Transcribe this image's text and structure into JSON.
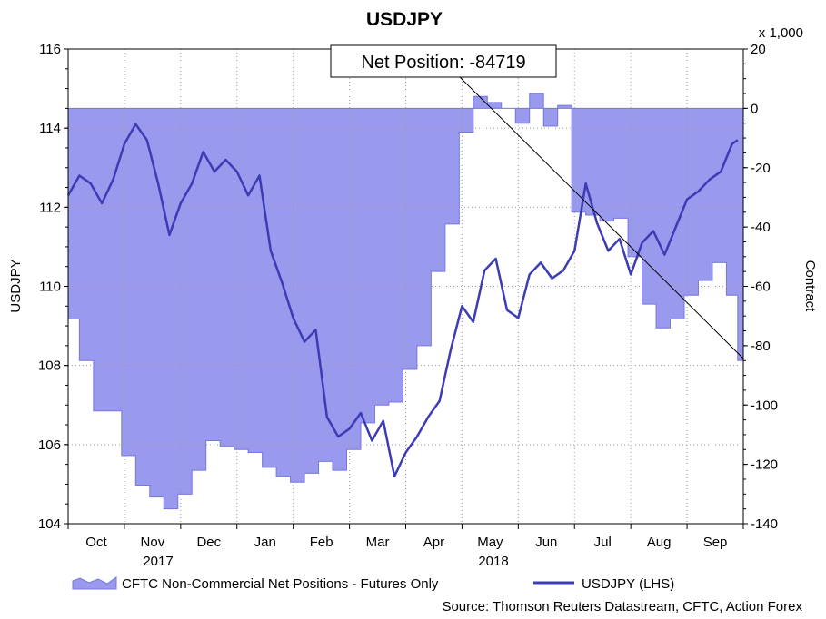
{
  "chart_data": {
    "type": "line",
    "title": "USDJPY",
    "ylabel_left": "USDJPY",
    "ylabel_right": "Contract",
    "right_unit": "x 1,000",
    "ylim_left": [
      104,
      116
    ],
    "yticks_left": [
      "104",
      "106",
      "108",
      "110",
      "112",
      "114",
      "116"
    ],
    "ylim_right": [
      -140,
      20
    ],
    "yticks_right": [
      "-140",
      "-120",
      "-100",
      "-80",
      "-60",
      "-40",
      "-20",
      "0",
      "20"
    ],
    "months": [
      "Oct",
      "Nov",
      "Dec",
      "Jan",
      "Feb",
      "Mar",
      "Apr",
      "May",
      "Jun",
      "Jul",
      "Aug",
      "Sep"
    ],
    "years": [
      "2017",
      "2018"
    ],
    "grid": true,
    "legend_position": "bottom",
    "annotation": {
      "text": "Net Position: -84719"
    },
    "source": "Source: Thomson Reuters Datastream, CFTC, Action Forex",
    "colors": {
      "line": "#3c3cb4",
      "area": "#9999ee",
      "area_edge": "#7777dd"
    },
    "series": [
      {
        "name": "CFTC Non-Commercial Net Positions - Futures Only",
        "type": "area",
        "axis": "right",
        "x": [
          0,
          0.2,
          0.45,
          0.7,
          0.95,
          1.2,
          1.45,
          1.7,
          1.95,
          2.2,
          2.45,
          2.7,
          2.95,
          3.2,
          3.45,
          3.7,
          3.95,
          4.2,
          4.45,
          4.7,
          4.95,
          5.2,
          5.45,
          5.7,
          5.95,
          6.2,
          6.45,
          6.7,
          6.95,
          7.2,
          7.45,
          7.7,
          7.95,
          8.2,
          8.45,
          8.7,
          8.95,
          9.2,
          9.45,
          9.7,
          9.95,
          10.2,
          10.45,
          10.7,
          10.95,
          11.2,
          11.45,
          11.7,
          11.9
        ],
        "values": [
          -71,
          -85,
          -102,
          -102,
          -117,
          -127,
          -131,
          -135,
          -130,
          -122,
          -112,
          -114,
          -115,
          -116,
          -121,
          -124,
          -126,
          -123,
          -119,
          -122,
          -115,
          -106,
          -100,
          -99,
          -88,
          -80,
          -55,
          -39,
          -8,
          4,
          2,
          0,
          -5,
          5,
          -6,
          1,
          -35,
          -36,
          -38,
          -37,
          -50,
          -66,
          -74,
          -71,
          -63,
          -58,
          -52,
          -63,
          -85
        ]
      },
      {
        "name": "USDJPY (LHS)",
        "type": "line",
        "axis": "left",
        "x": [
          0,
          0.2,
          0.4,
          0.6,
          0.8,
          1.0,
          1.2,
          1.4,
          1.6,
          1.8,
          2.0,
          2.2,
          2.4,
          2.6,
          2.8,
          3.0,
          3.2,
          3.4,
          3.6,
          3.8,
          4.0,
          4.2,
          4.4,
          4.6,
          4.8,
          5.0,
          5.2,
          5.4,
          5.6,
          5.8,
          6.0,
          6.2,
          6.4,
          6.6,
          6.8,
          7.0,
          7.2,
          7.4,
          7.6,
          7.8,
          8.0,
          8.2,
          8.4,
          8.6,
          8.8,
          9.0,
          9.2,
          9.4,
          9.6,
          9.8,
          10.0,
          10.2,
          10.4,
          10.6,
          10.8,
          11.0,
          11.2,
          11.4,
          11.6,
          11.8,
          11.9
        ],
        "values": [
          112.3,
          112.8,
          112.6,
          112.1,
          112.7,
          113.6,
          114.1,
          113.7,
          112.6,
          111.3,
          112.1,
          112.6,
          113.4,
          112.9,
          113.2,
          112.9,
          112.3,
          112.8,
          110.9,
          110.1,
          109.2,
          108.6,
          108.9,
          106.7,
          106.2,
          106.4,
          106.8,
          106.1,
          106.6,
          105.2,
          105.8,
          106.2,
          106.7,
          107.1,
          108.4,
          109.5,
          109.1,
          110.4,
          110.7,
          109.4,
          109.2,
          110.3,
          110.6,
          110.2,
          110.4,
          110.9,
          112.6,
          111.6,
          110.9,
          111.2,
          110.3,
          111.1,
          111.4,
          110.8,
          111.5,
          112.2,
          112.4,
          112.7,
          112.9,
          113.6,
          113.7
        ]
      }
    ]
  }
}
